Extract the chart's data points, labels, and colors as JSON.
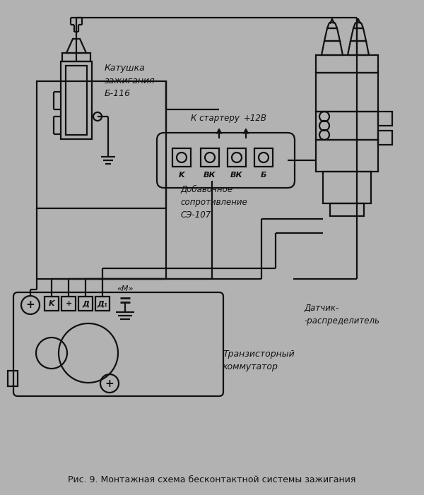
{
  "bg_color": "#b2b2b2",
  "line_color": "#111111",
  "title": "Рис. 9. Монтажная схема бесконтактной системы зажигания",
  "label_coil": "Катушка\nзажигания\nБ-116",
  "label_resist": "Добавочное\nсопротивление\nСЭ-107",
  "label_starter": "К стартеру",
  "label_12v": "+12В",
  "label_dist": "Датчик-\n-распределитель",
  "label_comm": "Транзисторный\nкоммутатор",
  "label_M": "«M»",
  "label_K_comm": "K",
  "label_plus_comm": "+",
  "label_D": "Д",
  "label_D1": "Д₁",
  "label_K_res": "K",
  "label_VK1": "ВК",
  "label_VK2": "ВК",
  "label_B": "Б"
}
